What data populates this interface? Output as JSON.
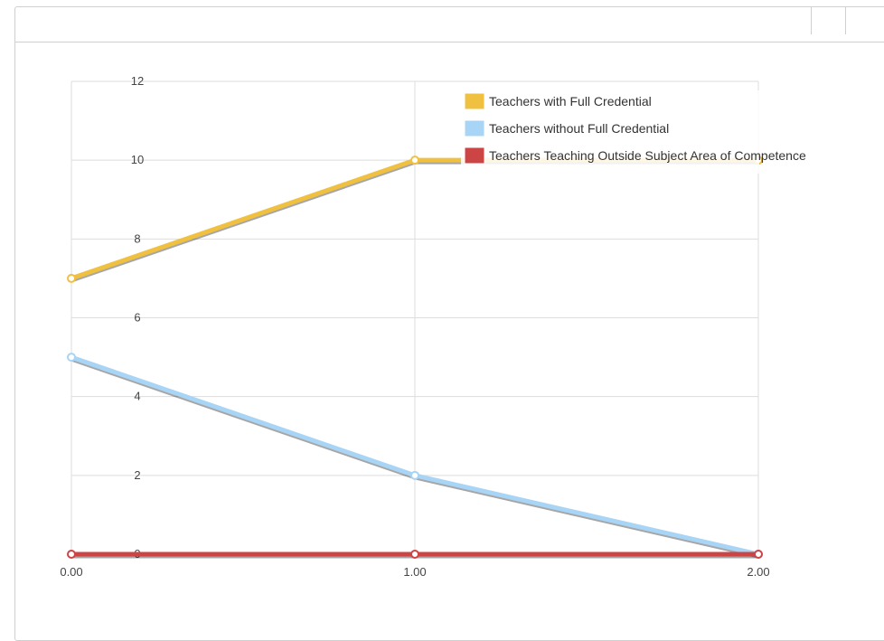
{
  "header": {
    "buttons": [
      "",
      ""
    ]
  },
  "colors": {
    "full_credential": "#f0c040",
    "without_credential": "#a8d4f5",
    "outside_subject": "#cc4444",
    "grid": "#dddddd"
  },
  "chart_data": {
    "type": "line",
    "x": [
      0,
      1,
      2
    ],
    "x_tick_labels": [
      "0.00",
      "1.00",
      "2.00"
    ],
    "y_ticks": [
      0,
      2,
      4,
      6,
      8,
      10,
      12
    ],
    "ylim": [
      0,
      12
    ],
    "xlim": [
      0,
      2
    ],
    "grid": true,
    "legend_position": "top-right",
    "series": [
      {
        "name": "Teachers with Full Credential",
        "values": [
          7,
          10,
          10
        ],
        "color": "#f0c040"
      },
      {
        "name": "Teachers without Full Credential",
        "values": [
          5,
          2,
          0
        ],
        "color": "#a8d4f5"
      },
      {
        "name": "Teachers Teaching Outside Subject Area of Competence",
        "values": [
          0,
          0,
          0
        ],
        "color": "#cc4444"
      }
    ]
  }
}
